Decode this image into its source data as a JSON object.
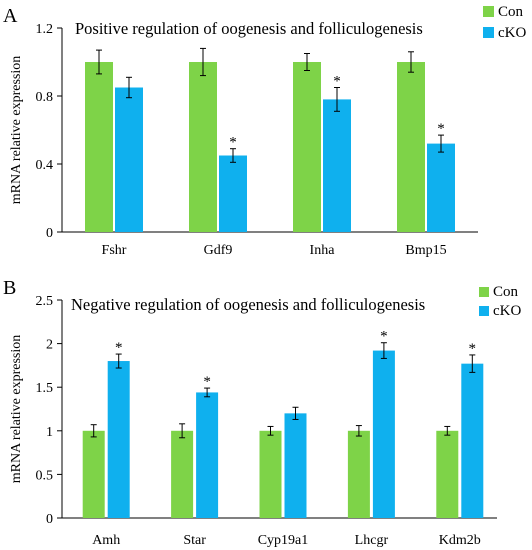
{
  "legend": {
    "con": "Con",
    "cko": "cKO"
  },
  "colors": {
    "con": "#7ED348",
    "cko": "#0FB0EE",
    "stroke": "#000000"
  },
  "chart_data": [
    {
      "panel_label": "A",
      "type": "bar",
      "title": "Positive regulation of oogenesis and folliculogenesis",
      "ylabel": "mRNA relative expression",
      "ylim": [
        0,
        1.2
      ],
      "yticks": [
        0,
        0.4,
        0.8,
        1.2
      ],
      "ytick_labels": [
        "0",
        "0.4",
        "0.8",
        "1.2"
      ],
      "categories": [
        "Fshr",
        "Gdf9",
        "Inha",
        "Bmp15"
      ],
      "series": [
        {
          "name": "Con",
          "values": [
            1.0,
            1.0,
            1.0,
            1.0
          ],
          "errors": [
            0.07,
            0.08,
            0.05,
            0.06
          ],
          "significant": [
            false,
            false,
            false,
            false
          ]
        },
        {
          "name": "cKO",
          "values": [
            0.85,
            0.45,
            0.78,
            0.52
          ],
          "errors": [
            0.06,
            0.04,
            0.07,
            0.05
          ],
          "significant": [
            false,
            true,
            true,
            true
          ]
        }
      ],
      "annotation": "*",
      "legend_position": "top-right",
      "grid": false
    },
    {
      "panel_label": "B",
      "type": "bar",
      "title": "Negative regulation of oogenesis and folliculogenesis",
      "ylabel": "mRNA relative expression",
      "ylim": [
        0,
        2.5
      ],
      "yticks": [
        0,
        0.5,
        1,
        1.5,
        2,
        2.5
      ],
      "ytick_labels": [
        "0",
        "0.5",
        "1",
        "1.5",
        "2",
        "2.5"
      ],
      "categories": [
        "Amh",
        "Star",
        "Cyp19a1",
        "Lhcgr",
        "Kdm2b"
      ],
      "series": [
        {
          "name": "Con",
          "values": [
            1.0,
            1.0,
            1.0,
            1.0,
            1.0
          ],
          "errors": [
            0.07,
            0.08,
            0.05,
            0.06,
            0.05
          ],
          "significant": [
            false,
            false,
            false,
            false,
            false
          ]
        },
        {
          "name": "cKO",
          "values": [
            1.8,
            1.44,
            1.2,
            1.92,
            1.77
          ],
          "errors": [
            0.08,
            0.05,
            0.07,
            0.09,
            0.1
          ],
          "significant": [
            true,
            true,
            false,
            true,
            true
          ]
        }
      ],
      "annotation": "*",
      "legend_position": "top-right",
      "grid": false
    }
  ]
}
